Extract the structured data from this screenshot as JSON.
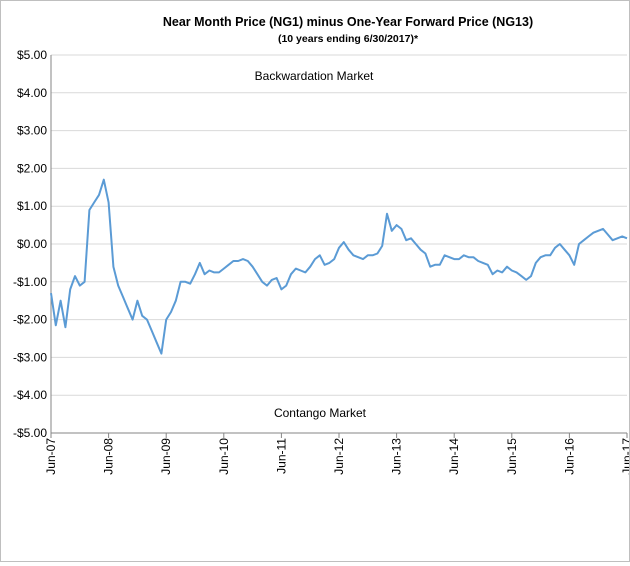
{
  "chart_data": {
    "type": "line",
    "title": "Near Month Price (NG1) minus One-Year Forward Price (NG13)",
    "subtitle": "(10 years ending 6/30/2017)*",
    "xlabel": "",
    "ylabel": "",
    "ylim": [
      -5,
      5
    ],
    "xlim": [
      "2007-06",
      "2017-06"
    ],
    "grid": "horizontal",
    "y_ticks": [
      "$5.00",
      "$4.00",
      "$3.00",
      "$2.00",
      "$1.00",
      "$0.00",
      "-$1.00",
      "-$2.00",
      "-$3.00",
      "-$4.00",
      "-$5.00"
    ],
    "x_ticks": [
      "Jun-07",
      "Jun-08",
      "Jun-09",
      "Jun-10",
      "Jun-11",
      "Jun-12",
      "Jun-13",
      "Jun-14",
      "Jun-15",
      "Jun-16",
      "Jun-17"
    ],
    "annotations": [
      "Backwardation Market",
      "Contango Market"
    ],
    "color": "#5b9bd5",
    "series": [
      {
        "x": [
          "2007-06",
          "2007-07",
          "2007-08",
          "2007-09",
          "2007-10",
          "2007-11",
          "2007-12",
          "2008-01",
          "2008-02",
          "2008-03",
          "2008-04",
          "2008-05",
          "2008-06",
          "2008-07",
          "2008-08",
          "2008-09",
          "2008-10",
          "2008-11",
          "2008-12",
          "2009-01",
          "2009-02",
          "2009-03",
          "2009-04",
          "2009-05",
          "2009-06",
          "2009-07",
          "2009-08",
          "2009-09",
          "2009-10",
          "2009-11",
          "2009-12",
          "2010-01",
          "2010-02",
          "2010-03",
          "2010-04",
          "2010-05",
          "2010-06",
          "2010-07",
          "2010-08",
          "2010-09",
          "2010-10",
          "2010-11",
          "2010-12",
          "2011-01",
          "2011-02",
          "2011-03",
          "2011-04",
          "2011-05",
          "2011-06",
          "2011-07",
          "2011-08",
          "2011-09",
          "2011-10",
          "2011-11",
          "2011-12",
          "2012-01",
          "2012-02",
          "2012-03",
          "2012-04",
          "2012-05",
          "2012-06",
          "2012-07",
          "2012-08",
          "2012-09",
          "2012-10",
          "2012-11",
          "2012-12",
          "2013-01",
          "2013-02",
          "2013-03",
          "2013-04",
          "2013-05",
          "2013-06",
          "2013-07",
          "2013-08",
          "2013-09",
          "2013-10",
          "2013-11",
          "2013-12",
          "2014-01",
          "2014-02",
          "2014-03",
          "2014-04",
          "2014-05",
          "2014-06",
          "2014-07",
          "2014-08",
          "2014-09",
          "2014-10",
          "2014-11",
          "2014-12",
          "2015-01",
          "2015-02",
          "2015-03",
          "2015-04",
          "2015-05",
          "2015-06",
          "2015-07",
          "2015-08",
          "2015-09",
          "2015-10",
          "2015-11",
          "2015-12",
          "2016-01",
          "2016-02",
          "2016-03",
          "2016-04",
          "2016-05",
          "2016-06",
          "2016-07",
          "2016-08",
          "2016-09",
          "2016-10",
          "2016-11",
          "2016-12",
          "2017-01",
          "2017-02",
          "2017-03",
          "2017-04",
          "2017-05",
          "2017-06"
        ],
        "values": [
          -1.3,
          -2.15,
          -1.5,
          -2.2,
          -1.2,
          -0.85,
          -1.1,
          -1.0,
          0.9,
          1.1,
          1.3,
          1.7,
          1.1,
          -0.6,
          -1.1,
          -1.4,
          -1.7,
          -2.0,
          -1.5,
          -1.9,
          -2.0,
          -2.3,
          -2.6,
          -2.9,
          -2.0,
          -1.8,
          -1.5,
          -1.0,
          -1.0,
          -1.05,
          -0.8,
          -0.5,
          -0.8,
          -0.7,
          -0.75,
          -0.75,
          -0.65,
          -0.55,
          -0.45,
          -0.45,
          -0.4,
          -0.45,
          -0.6,
          -0.8,
          -1.0,
          -1.1,
          -0.95,
          -0.9,
          -1.2,
          -1.1,
          -0.8,
          -0.65,
          -0.7,
          -0.75,
          -0.6,
          -0.4,
          -0.3,
          -0.55,
          -0.5,
          -0.4,
          -0.1,
          0.05,
          -0.15,
          -0.3,
          -0.35,
          -0.4,
          -0.3,
          -0.3,
          -0.25,
          -0.05,
          0.8,
          0.35,
          0.5,
          0.4,
          0.1,
          0.15,
          0.0,
          -0.15,
          -0.25,
          -0.6,
          -0.55,
          -0.55,
          -0.3,
          -0.35,
          -0.4,
          -0.4,
          -0.3,
          -0.35,
          -0.35,
          -0.45,
          -0.5,
          -0.55,
          -0.8,
          -0.7,
          -0.75,
          -0.6,
          -0.7,
          -0.75,
          -0.85,
          -0.95,
          -0.85,
          -0.5,
          -0.35,
          -0.3,
          -0.3,
          -0.1,
          0.0,
          -0.15,
          -0.3,
          -0.55,
          0.0,
          0.1,
          0.2,
          0.3,
          0.35,
          0.4,
          0.25,
          0.1,
          0.15,
          0.2,
          0.15
        ]
      }
    ]
  }
}
